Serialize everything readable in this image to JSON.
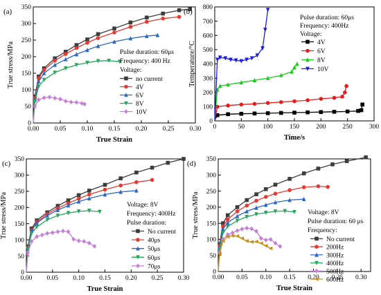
{
  "chart_data": [
    {
      "type": "line",
      "panel_label": "(a)",
      "xlabel": "True Strain",
      "ylabel": "True stress/MPa",
      "xlim": [
        0,
        0.3
      ],
      "ylim": [
        0,
        350
      ],
      "xticks": [
        "0.00",
        "0.05",
        "0.10",
        "0.15",
        "0.20",
        "0.25",
        "0.30"
      ],
      "yticks": [
        "0",
        "50",
        "100",
        "150",
        "200",
        "250",
        "300",
        "350"
      ],
      "legend_position": "right",
      "legend_header": [
        "Pulse duration: 60μs",
        "Frequency: 400 Hz",
        "Voltage:"
      ],
      "series": [
        {
          "name": "no current",
          "color": "#3d3d3d",
          "marker": "square",
          "x": [
            0,
            0.003,
            0.01,
            0.02,
            0.04,
            0.06,
            0.08,
            0.1,
            0.12,
            0.15,
            0.18,
            0.21,
            0.24,
            0.27,
            0.29
          ],
          "y": [
            0,
            80,
            140,
            165,
            195,
            215,
            235,
            252,
            268,
            285,
            303,
            318,
            330,
            340,
            343
          ]
        },
        {
          "name": "4V",
          "color": "#e8382f",
          "marker": "circle",
          "x": [
            0,
            0.003,
            0.01,
            0.02,
            0.04,
            0.06,
            0.08,
            0.1,
            0.12,
            0.15,
            0.18,
            0.21,
            0.24,
            0.27
          ],
          "y": [
            0,
            75,
            135,
            160,
            188,
            208,
            226,
            242,
            256,
            273,
            290,
            305,
            315,
            320
          ]
        },
        {
          "name": "6V",
          "color": "#2a66c5",
          "marker": "triangle-up",
          "x": [
            0,
            0.003,
            0.01,
            0.02,
            0.04,
            0.06,
            0.08,
            0.1,
            0.12,
            0.15,
            0.18,
            0.21,
            0.23
          ],
          "y": [
            0,
            70,
            125,
            150,
            175,
            192,
            207,
            220,
            232,
            245,
            255,
            262,
            265
          ]
        },
        {
          "name": "8V",
          "color": "#26a65a",
          "marker": "triangle-down",
          "x": [
            0,
            0.003,
            0.01,
            0.02,
            0.04,
            0.06,
            0.08,
            0.1,
            0.12,
            0.14,
            0.16
          ],
          "y": [
            0,
            65,
            110,
            130,
            152,
            165,
            175,
            182,
            187,
            188,
            185
          ]
        },
        {
          "name": "10V",
          "color": "#c47fd6",
          "marker": "diamond",
          "x": [
            0,
            0.003,
            0.01,
            0.02,
            0.03,
            0.04,
            0.05,
            0.06,
            0.07,
            0.08,
            0.09,
            0.095
          ],
          "y": [
            0,
            50,
            70,
            76,
            78,
            75,
            72,
            66,
            63,
            62,
            59,
            57
          ]
        }
      ]
    },
    {
      "type": "line",
      "panel_label": "(b)",
      "xlabel": "Time/s",
      "ylabel": "Temperature/°C",
      "xlim": [
        0,
        300
      ],
      "ylim": [
        0,
        800
      ],
      "xticks": [
        "0",
        "50",
        "100",
        "150",
        "200",
        "250",
        "300"
      ],
      "yticks": [
        "0",
        "100",
        "200",
        "300",
        "400",
        "500",
        "600",
        "700",
        "800"
      ],
      "legend_position": "top-right",
      "legend_header": [
        "Pulse duration: 60μs",
        "Frequency: 400Hz",
        "Voltage:"
      ],
      "series": [
        {
          "name": "4V",
          "color": "#000000",
          "marker": "square",
          "x": [
            0,
            5,
            25,
            50,
            75,
            100,
            125,
            150,
            175,
            200,
            225,
            250,
            270,
            276,
            278
          ],
          "y": [
            5,
            40,
            47,
            50,
            52,
            54,
            56,
            58,
            60,
            62,
            64,
            66,
            70,
            75,
            115
          ]
        },
        {
          "name": "6V",
          "color": "#e81a1a",
          "marker": "circle",
          "x": [
            0,
            5,
            25,
            50,
            75,
            100,
            125,
            150,
            175,
            200,
            225,
            240,
            245,
            248
          ],
          "y": [
            5,
            100,
            108,
            115,
            120,
            126,
            132,
            138,
            145,
            155,
            162,
            170,
            200,
            245
          ]
        },
        {
          "name": "8V",
          "color": "#18cc18",
          "marker": "triangle-up",
          "x": [
            0,
            5,
            10,
            25,
            50,
            75,
            100,
            125,
            145,
            150,
            155
          ],
          "y": [
            5,
            220,
            245,
            255,
            270,
            285,
            300,
            320,
            345,
            375,
            400
          ]
        },
        {
          "name": "10V",
          "color": "#1a1ae8",
          "marker": "triangle-down",
          "x": [
            0,
            5,
            10,
            20,
            30,
            40,
            50,
            60,
            70,
            80,
            90,
            95,
            100
          ],
          "y": [
            5,
            430,
            445,
            440,
            430,
            425,
            420,
            430,
            440,
            460,
            510,
            640,
            780
          ]
        }
      ]
    },
    {
      "type": "line",
      "panel_label": "(c)",
      "xlabel": "True Strain",
      "ylabel": "True stress/MPa",
      "xlim": [
        0,
        0.3
      ],
      "ylim": [
        0,
        350
      ],
      "xticks": [
        "0.00",
        "0.05",
        "0.10",
        "0.15",
        "0.20",
        "0.25",
        "0.30"
      ],
      "yticks": [
        "0",
        "50",
        "100",
        "150",
        "200",
        "250",
        "300",
        "350"
      ],
      "legend_position": "right",
      "legend_header": [
        "Voltage: 8V",
        "Frequency: 400Hz",
        "Pulse duration:"
      ],
      "series": [
        {
          "name": "No current",
          "color": "#3d3d3d",
          "marker": "square",
          "x": [
            0,
            0.003,
            0.01,
            0.02,
            0.04,
            0.06,
            0.08,
            0.1,
            0.12,
            0.15,
            0.18,
            0.21,
            0.24,
            0.27,
            0.3
          ],
          "y": [
            0,
            80,
            135,
            160,
            185,
            205,
            222,
            238,
            252,
            270,
            290,
            308,
            323,
            338,
            350
          ]
        },
        {
          "name": "40μs",
          "color": "#e8382f",
          "marker": "circle",
          "x": [
            0,
            0.003,
            0.01,
            0.02,
            0.04,
            0.06,
            0.08,
            0.1,
            0.12,
            0.15,
            0.18,
            0.21,
            0.24
          ],
          "y": [
            0,
            75,
            130,
            155,
            180,
            198,
            213,
            227,
            240,
            255,
            268,
            278,
            285
          ]
        },
        {
          "name": "50μs",
          "color": "#2a66c5",
          "marker": "triangle-up",
          "x": [
            0,
            0.003,
            0.01,
            0.02,
            0.04,
            0.06,
            0.08,
            0.1,
            0.12,
            0.15,
            0.18,
            0.21
          ],
          "y": [
            0,
            72,
            128,
            152,
            175,
            192,
            206,
            218,
            228,
            240,
            248,
            252
          ]
        },
        {
          "name": "60μs",
          "color": "#26a65a",
          "marker": "triangle-down",
          "x": [
            0,
            0.003,
            0.01,
            0.02,
            0.04,
            0.06,
            0.08,
            0.1,
            0.12,
            0.14
          ],
          "y": [
            0,
            70,
            120,
            140,
            162,
            175,
            183,
            188,
            190,
            187
          ]
        },
        {
          "name": "70μs",
          "color": "#c47fd6",
          "marker": "diamond",
          "x": [
            0,
            0.003,
            0.01,
            0.02,
            0.03,
            0.04,
            0.05,
            0.06,
            0.07,
            0.08,
            0.09,
            0.1,
            0.11,
            0.12,
            0.13
          ],
          "y": [
            0,
            60,
            95,
            110,
            115,
            120,
            122,
            125,
            127,
            125,
            102,
            97,
            95,
            90,
            80
          ]
        }
      ]
    },
    {
      "type": "line",
      "panel_label": "(d)",
      "xlabel": "True Strain",
      "ylabel": "True stress/MPa",
      "xlim": [
        0,
        0.32
      ],
      "ylim": [
        0,
        350
      ],
      "xticks": [
        "0.00",
        "0.05",
        "0.10",
        "0.15",
        "0.20",
        "0.25",
        "0.30"
      ],
      "yticks": [
        "0",
        "50",
        "100",
        "150",
        "200",
        "250",
        "300",
        "350"
      ],
      "legend_position": "right",
      "legend_header": [
        "Voltage: 8V",
        "Pulse duration: 60 μs",
        "Frequency:"
      ],
      "series": [
        {
          "name": "No current",
          "color": "#3d3d3d",
          "marker": "square",
          "x": [
            0,
            0.003,
            0.01,
            0.02,
            0.04,
            0.06,
            0.08,
            0.1,
            0.12,
            0.15,
            0.18,
            0.21,
            0.24,
            0.27,
            0.31
          ],
          "y": [
            0,
            85,
            150,
            175,
            200,
            222,
            240,
            256,
            270,
            288,
            305,
            320,
            333,
            343,
            355
          ]
        },
        {
          "name": "200Hz",
          "color": "#e8382f",
          "marker": "circle",
          "x": [
            0,
            0.003,
            0.01,
            0.02,
            0.04,
            0.06,
            0.08,
            0.1,
            0.12,
            0.15,
            0.18,
            0.21,
            0.23
          ],
          "y": [
            0,
            80,
            140,
            162,
            187,
            205,
            220,
            232,
            242,
            253,
            262,
            265,
            263
          ]
        },
        {
          "name": "300Hz",
          "color": "#2a66c5",
          "marker": "triangle-up",
          "x": [
            0,
            0.003,
            0.01,
            0.02,
            0.04,
            0.06,
            0.08,
            0.1,
            0.12,
            0.15,
            0.18
          ],
          "y": [
            0,
            75,
            132,
            152,
            172,
            187,
            198,
            207,
            215,
            222,
            225
          ]
        },
        {
          "name": "400Hz",
          "color": "#26a65a",
          "marker": "triangle-down",
          "x": [
            0,
            0.003,
            0.01,
            0.02,
            0.04,
            0.06,
            0.08,
            0.1,
            0.12,
            0.14,
            0.16
          ],
          "y": [
            0,
            70,
            120,
            140,
            158,
            170,
            178,
            183,
            187,
            188,
            185
          ]
        },
        {
          "name": "500Hz",
          "color": "#c47fd6",
          "marker": "diamond",
          "x": [
            0,
            0.003,
            0.01,
            0.02,
            0.03,
            0.04,
            0.05,
            0.06,
            0.07,
            0.08,
            0.09,
            0.1,
            0.11,
            0.12,
            0.13
          ],
          "y": [
            0,
            60,
            100,
            115,
            120,
            127,
            132,
            135,
            133,
            125,
            103,
            98,
            100,
            88,
            78
          ]
        },
        {
          "name": "600Hz",
          "color": "#c8921a",
          "marker": "left-triangle",
          "x": [
            0,
            0.003,
            0.01,
            0.02,
            0.03,
            0.04,
            0.05,
            0.06,
            0.07,
            0.08,
            0.09,
            0.1,
            0.11
          ],
          "y": [
            0,
            55,
            95,
            108,
            111,
            110,
            103,
            95,
            92,
            93,
            88,
            80,
            72
          ]
        }
      ]
    }
  ]
}
